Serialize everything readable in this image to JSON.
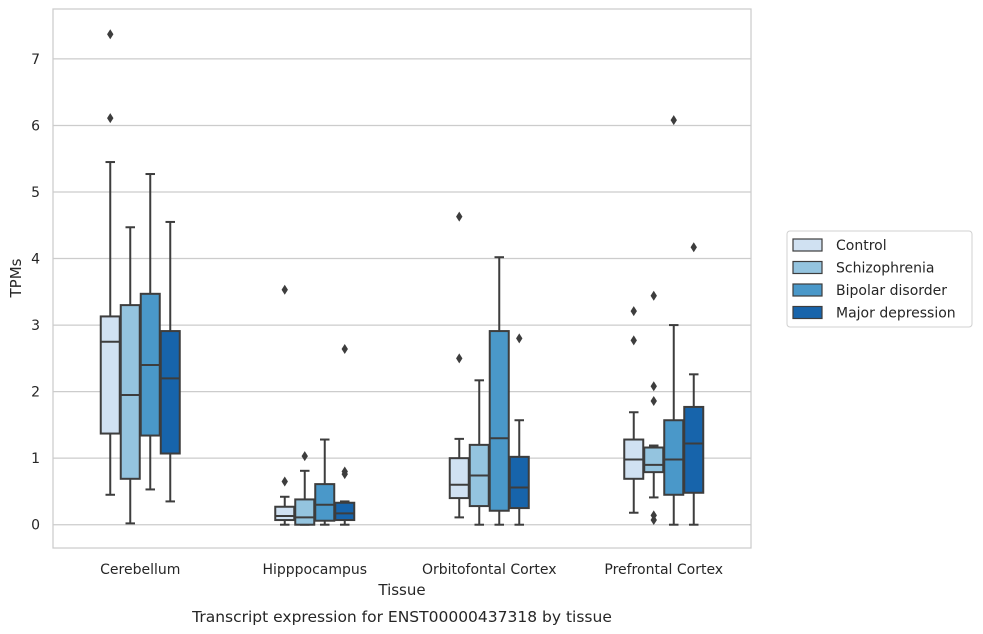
{
  "caption": "Transcript expression for ENST00000437318 by tissue",
  "chart_data": {
    "type": "box",
    "title": "",
    "xlabel": "Tissue",
    "ylabel": "TPMs",
    "ylim": [
      -0.35,
      7.75
    ],
    "yticks": [
      0,
      1,
      2,
      3,
      4,
      5,
      6,
      7
    ],
    "grid": "horizontal",
    "legend_position": "right",
    "categories": [
      "Cerebellum",
      "Hipppocampus",
      "Orbitofontal Cortex",
      "Prefrontal Cortex"
    ],
    "series": [
      {
        "name": "Control",
        "color": "#d0e1f2",
        "boxes": [
          {
            "whislo": 0.45,
            "q1": 1.37,
            "med": 2.75,
            "q3": 3.13,
            "whishi": 5.45,
            "fliers": [
              6.11,
              7.37
            ]
          },
          {
            "whislo": 0.0,
            "q1": 0.07,
            "med": 0.13,
            "q3": 0.27,
            "whishi": 0.42,
            "fliers": [
              0.65,
              3.53
            ]
          },
          {
            "whislo": 0.11,
            "q1": 0.4,
            "med": 0.6,
            "q3": 1.0,
            "whishi": 1.29,
            "fliers": [
              2.5,
              4.63
            ]
          },
          {
            "whislo": 0.18,
            "q1": 0.69,
            "med": 0.98,
            "q3": 1.28,
            "whishi": 1.69,
            "fliers": [
              2.77,
              3.21
            ]
          }
        ]
      },
      {
        "name": "Schizophrenia",
        "color": "#94c4df",
        "boxes": [
          {
            "whislo": 0.02,
            "q1": 0.69,
            "med": 1.95,
            "q3": 3.3,
            "whishi": 4.47,
            "fliers": []
          },
          {
            "whislo": 0.0,
            "q1": 0.0,
            "med": 0.11,
            "q3": 0.38,
            "whishi": 0.81,
            "fliers": [
              1.03
            ]
          },
          {
            "whislo": 0.0,
            "q1": 0.28,
            "med": 0.74,
            "q3": 1.2,
            "whishi": 2.17,
            "fliers": []
          },
          {
            "whislo": 0.41,
            "q1": 0.79,
            "med": 0.9,
            "q3": 1.16,
            "whishi": 1.19,
            "fliers": [
              0.07,
              0.14,
              1.86,
              2.08,
              3.44
            ]
          }
        ]
      },
      {
        "name": "Bipolar disorder",
        "color": "#4a98c9",
        "boxes": [
          {
            "whislo": 0.53,
            "q1": 1.34,
            "med": 2.4,
            "q3": 3.47,
            "whishi": 5.27,
            "fliers": []
          },
          {
            "whislo": 0.0,
            "q1": 0.06,
            "med": 0.3,
            "q3": 0.61,
            "whishi": 1.28,
            "fliers": []
          },
          {
            "whislo": 0.0,
            "q1": 0.21,
            "med": 1.3,
            "q3": 2.91,
            "whishi": 4.02,
            "fliers": []
          },
          {
            "whislo": 0.0,
            "q1": 0.45,
            "med": 0.98,
            "q3": 1.57,
            "whishi": 3.0,
            "fliers": [
              6.08
            ]
          }
        ]
      },
      {
        "name": "Major depression",
        "color": "#1764ab",
        "boxes": [
          {
            "whislo": 0.35,
            "q1": 1.07,
            "med": 2.2,
            "q3": 2.91,
            "whishi": 4.55,
            "fliers": []
          },
          {
            "whislo": 0.0,
            "q1": 0.07,
            "med": 0.17,
            "q3": 0.33,
            "whishi": 0.35,
            "fliers": [
              0.76,
              0.8,
              2.64
            ]
          },
          {
            "whislo": 0.0,
            "q1": 0.25,
            "med": 0.56,
            "q3": 1.02,
            "whishi": 1.57,
            "fliers": [
              2.8
            ]
          },
          {
            "whislo": 0.0,
            "q1": 0.48,
            "med": 1.22,
            "q3": 1.77,
            "whishi": 2.26,
            "fliers": [
              4.17
            ]
          }
        ]
      }
    ]
  }
}
